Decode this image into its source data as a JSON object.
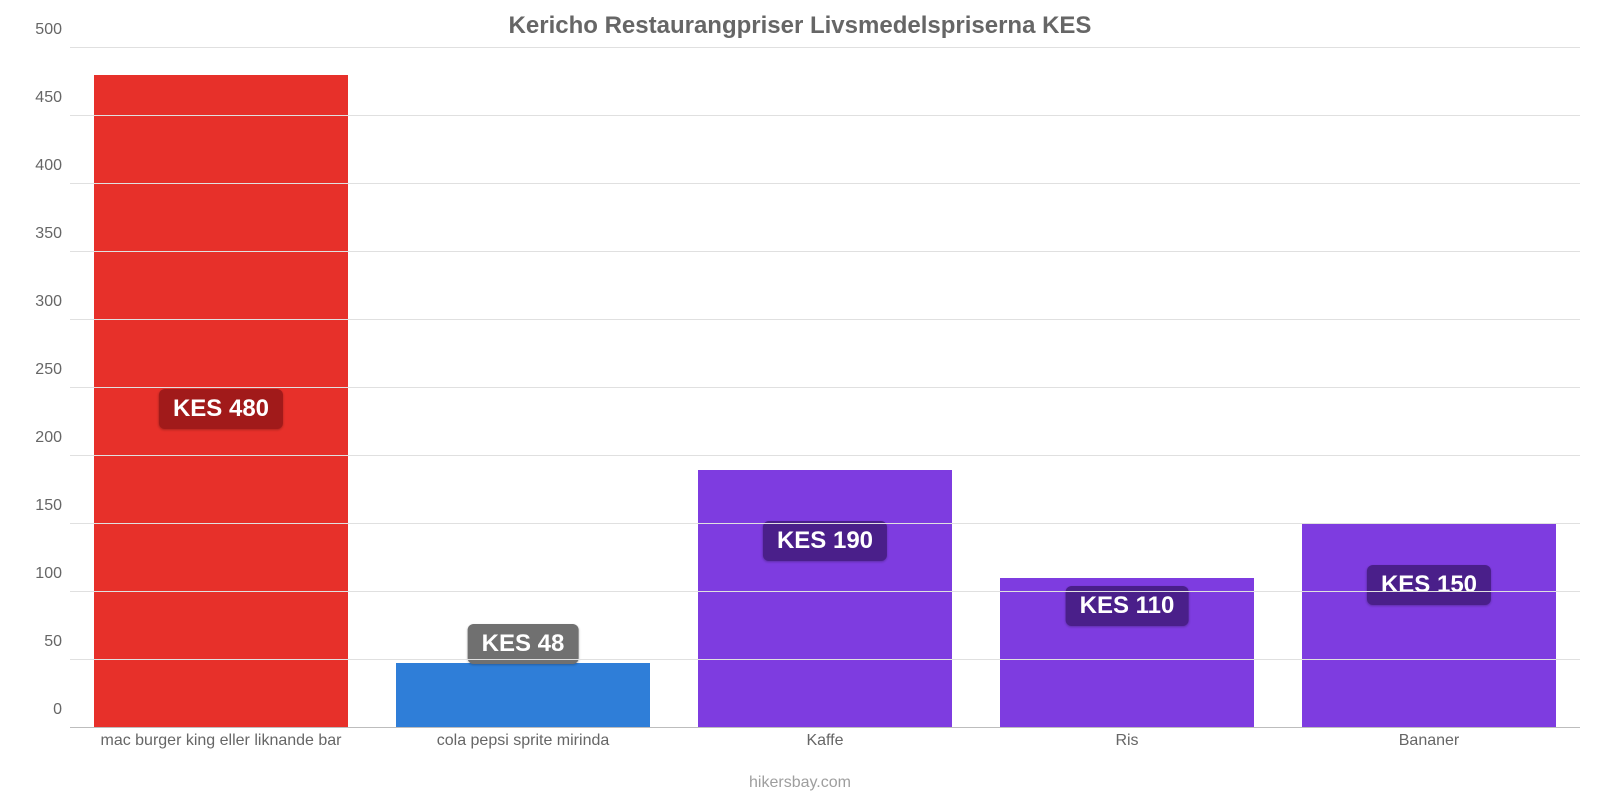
{
  "chart": {
    "type": "bar",
    "title": "Kericho Restaurangpriser Livsmedelspriserna KES",
    "title_color": "#666666",
    "title_fontsize": 24,
    "background_color": "#ffffff",
    "grid_color": "#e0e0e0",
    "axis_color": "#bdbdbd",
    "label_color": "#666666",
    "label_fontsize": 16,
    "ylim": [
      0,
      500
    ],
    "ytick_step": 50,
    "bar_width": 0.84,
    "value_label_fontsize": 24,
    "source": "hikersbay.com",
    "source_color": "#9e9e9e",
    "bars": [
      {
        "category": "mac burger king eller liknande bar",
        "value": 480,
        "value_label": "KES 480",
        "bar_color": "#e7302a",
        "badge_bg": "#a11a1a",
        "badge_top_frac": 0.48
      },
      {
        "category": "cola pepsi sprite mirinda",
        "value": 48,
        "value_label": "KES 48",
        "bar_color": "#2f7ed8",
        "badge_bg": "#707070",
        "badge_top_frac": -0.6
      },
      {
        "category": "Kaffe",
        "value": 190,
        "value_label": "KES 190",
        "bar_color": "#7e3ce0",
        "badge_bg": "#4a1f8a",
        "badge_top_frac": 0.2
      },
      {
        "category": "Ris",
        "value": 110,
        "value_label": "KES 110",
        "bar_color": "#7e3ce0",
        "badge_bg": "#4a1f8a",
        "badge_top_frac": 0.05
      },
      {
        "category": "Bananer",
        "value": 150,
        "value_label": "KES 150",
        "bar_color": "#7e3ce0",
        "badge_bg": "#4a1f8a",
        "badge_top_frac": 0.2
      }
    ]
  }
}
